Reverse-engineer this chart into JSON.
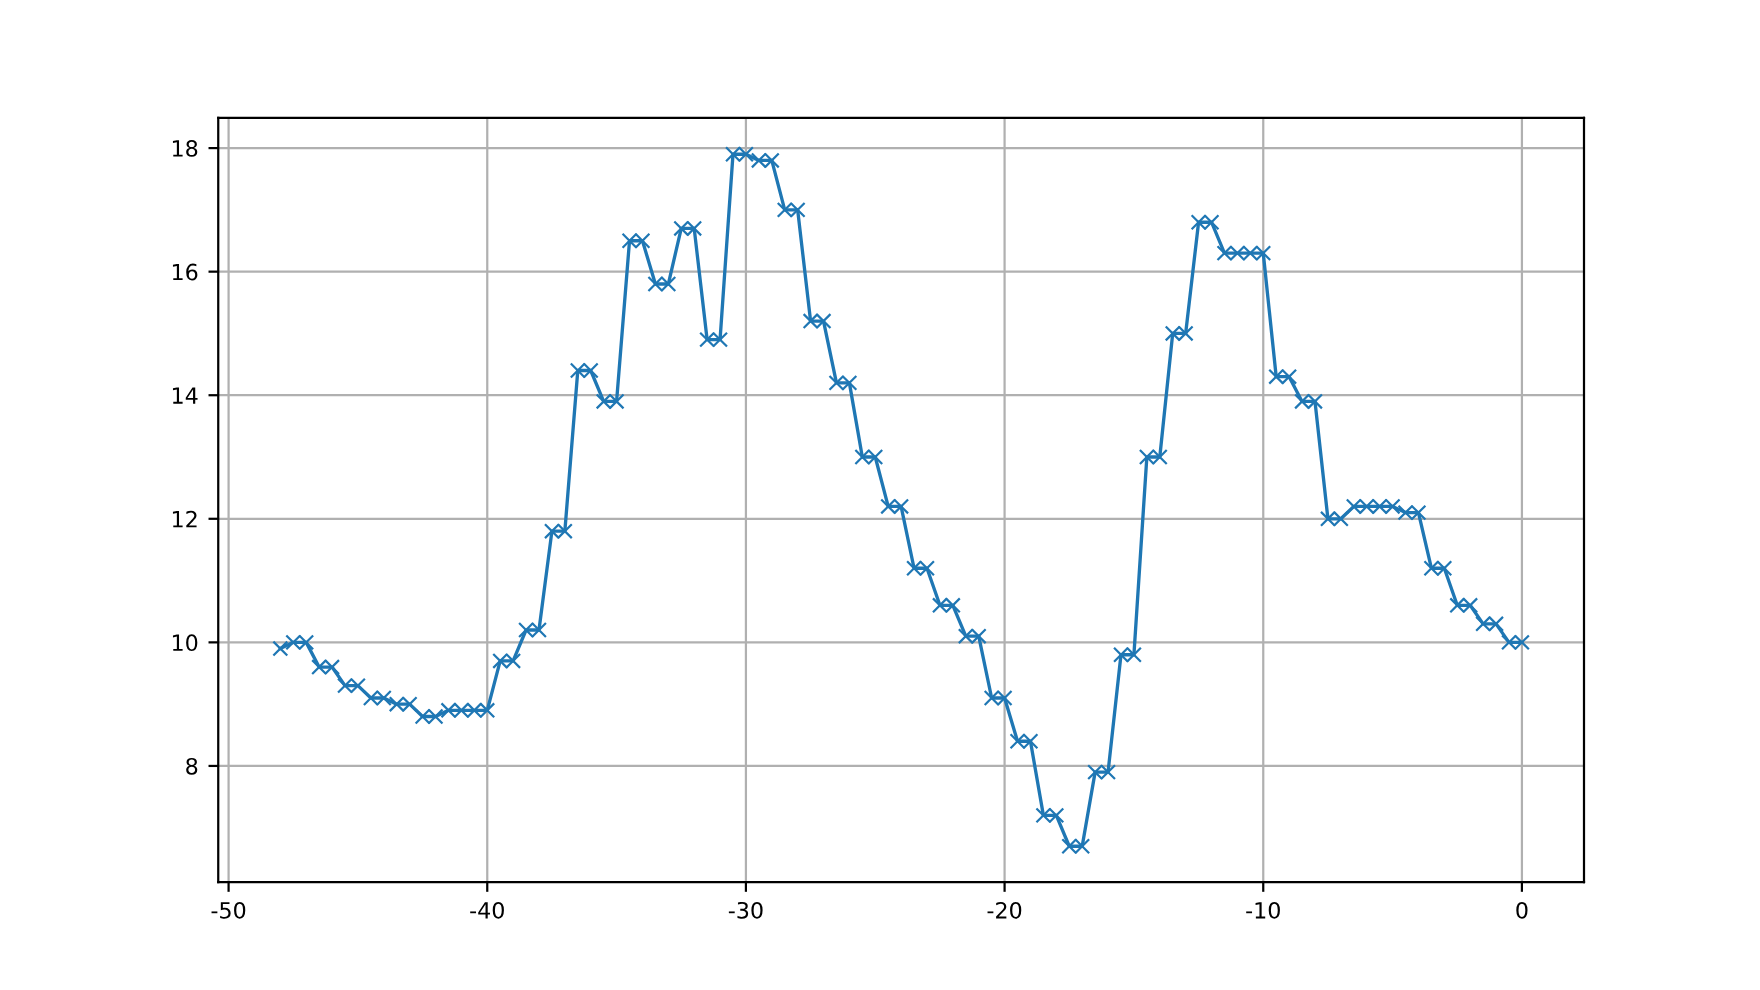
{
  "chart_data": {
    "type": "line",
    "x": [
      -48,
      -47.5,
      -47,
      -46.5,
      -46,
      -45.5,
      -45,
      -44.5,
      -44,
      -43.5,
      -43,
      -42.5,
      -42,
      -41.5,
      -41,
      -40.5,
      -40,
      -39.5,
      -39,
      -38.5,
      -38,
      -37.5,
      -37,
      -36.5,
      -36,
      -35.5,
      -35,
      -34.5,
      -34,
      -33.5,
      -33,
      -32.5,
      -32,
      -31.5,
      -31,
      -30.5,
      -30,
      -29.5,
      -29,
      -28.5,
      -28,
      -27.5,
      -27,
      -26.5,
      -26,
      -25.5,
      -25,
      -24.5,
      -24,
      -23.5,
      -23,
      -22.5,
      -22,
      -21.5,
      -21,
      -20.5,
      -20,
      -19.5,
      -19,
      -18.5,
      -18,
      -17.5,
      -17,
      -16.5,
      -16,
      -15.5,
      -15,
      -14.5,
      -14,
      -13.5,
      -13,
      -12.5,
      -12,
      -11.5,
      -11,
      -10.5,
      -10,
      -9.5,
      -9,
      -8.5,
      -8,
      -7.5,
      -7,
      -6.5,
      -6,
      -5.5,
      -5,
      -4.5,
      -4,
      -3.5,
      -3,
      -2.5,
      -2,
      -1.5,
      -1,
      -0.5,
      0
    ],
    "series": [
      {
        "color": "#1f77b4",
        "values": [
          9.9,
          10.0,
          10.0,
          9.6,
          9.6,
          9.3,
          9.3,
          9.1,
          9.1,
          9.0,
          9.0,
          8.8,
          8.8,
          8.9,
          8.9,
          8.9,
          8.9,
          9.7,
          9.7,
          10.2,
          10.2,
          11.8,
          11.8,
          14.4,
          14.4,
          13.9,
          13.9,
          16.5,
          16.5,
          15.8,
          15.8,
          16.7,
          16.7,
          14.9,
          14.9,
          17.9,
          17.9,
          17.8,
          17.8,
          17.0,
          17.0,
          15.2,
          15.2,
          14.2,
          14.2,
          13.0,
          13.0,
          12.2,
          12.2,
          11.2,
          11.2,
          10.6,
          10.6,
          10.1,
          10.1,
          9.1,
          9.1,
          8.4,
          8.4,
          7.2,
          7.2,
          6.7,
          6.7,
          7.9,
          7.9,
          9.8,
          9.8,
          13.0,
          13.0,
          15.0,
          15.0,
          16.8,
          16.8,
          16.3,
          16.3,
          16.3,
          16.3,
          14.3,
          14.3,
          13.9,
          13.9,
          12.0,
          12.0,
          12.2,
          12.2,
          12.2,
          12.2,
          12.1,
          12.1,
          11.2,
          11.2,
          10.6,
          10.6,
          10.3,
          10.3,
          10.0,
          10.0
        ]
      }
    ],
    "xlim": [
      -50.4,
      2.4
    ],
    "xticks": [
      -50,
      -40,
      -30,
      -20,
      -10,
      0
    ],
    "ylim": [
      6.12,
      18.49
    ],
    "yticks": [
      8,
      10,
      12,
      14,
      16,
      18
    ],
    "grid": true,
    "marker": "cross",
    "line_style": "solid"
  }
}
